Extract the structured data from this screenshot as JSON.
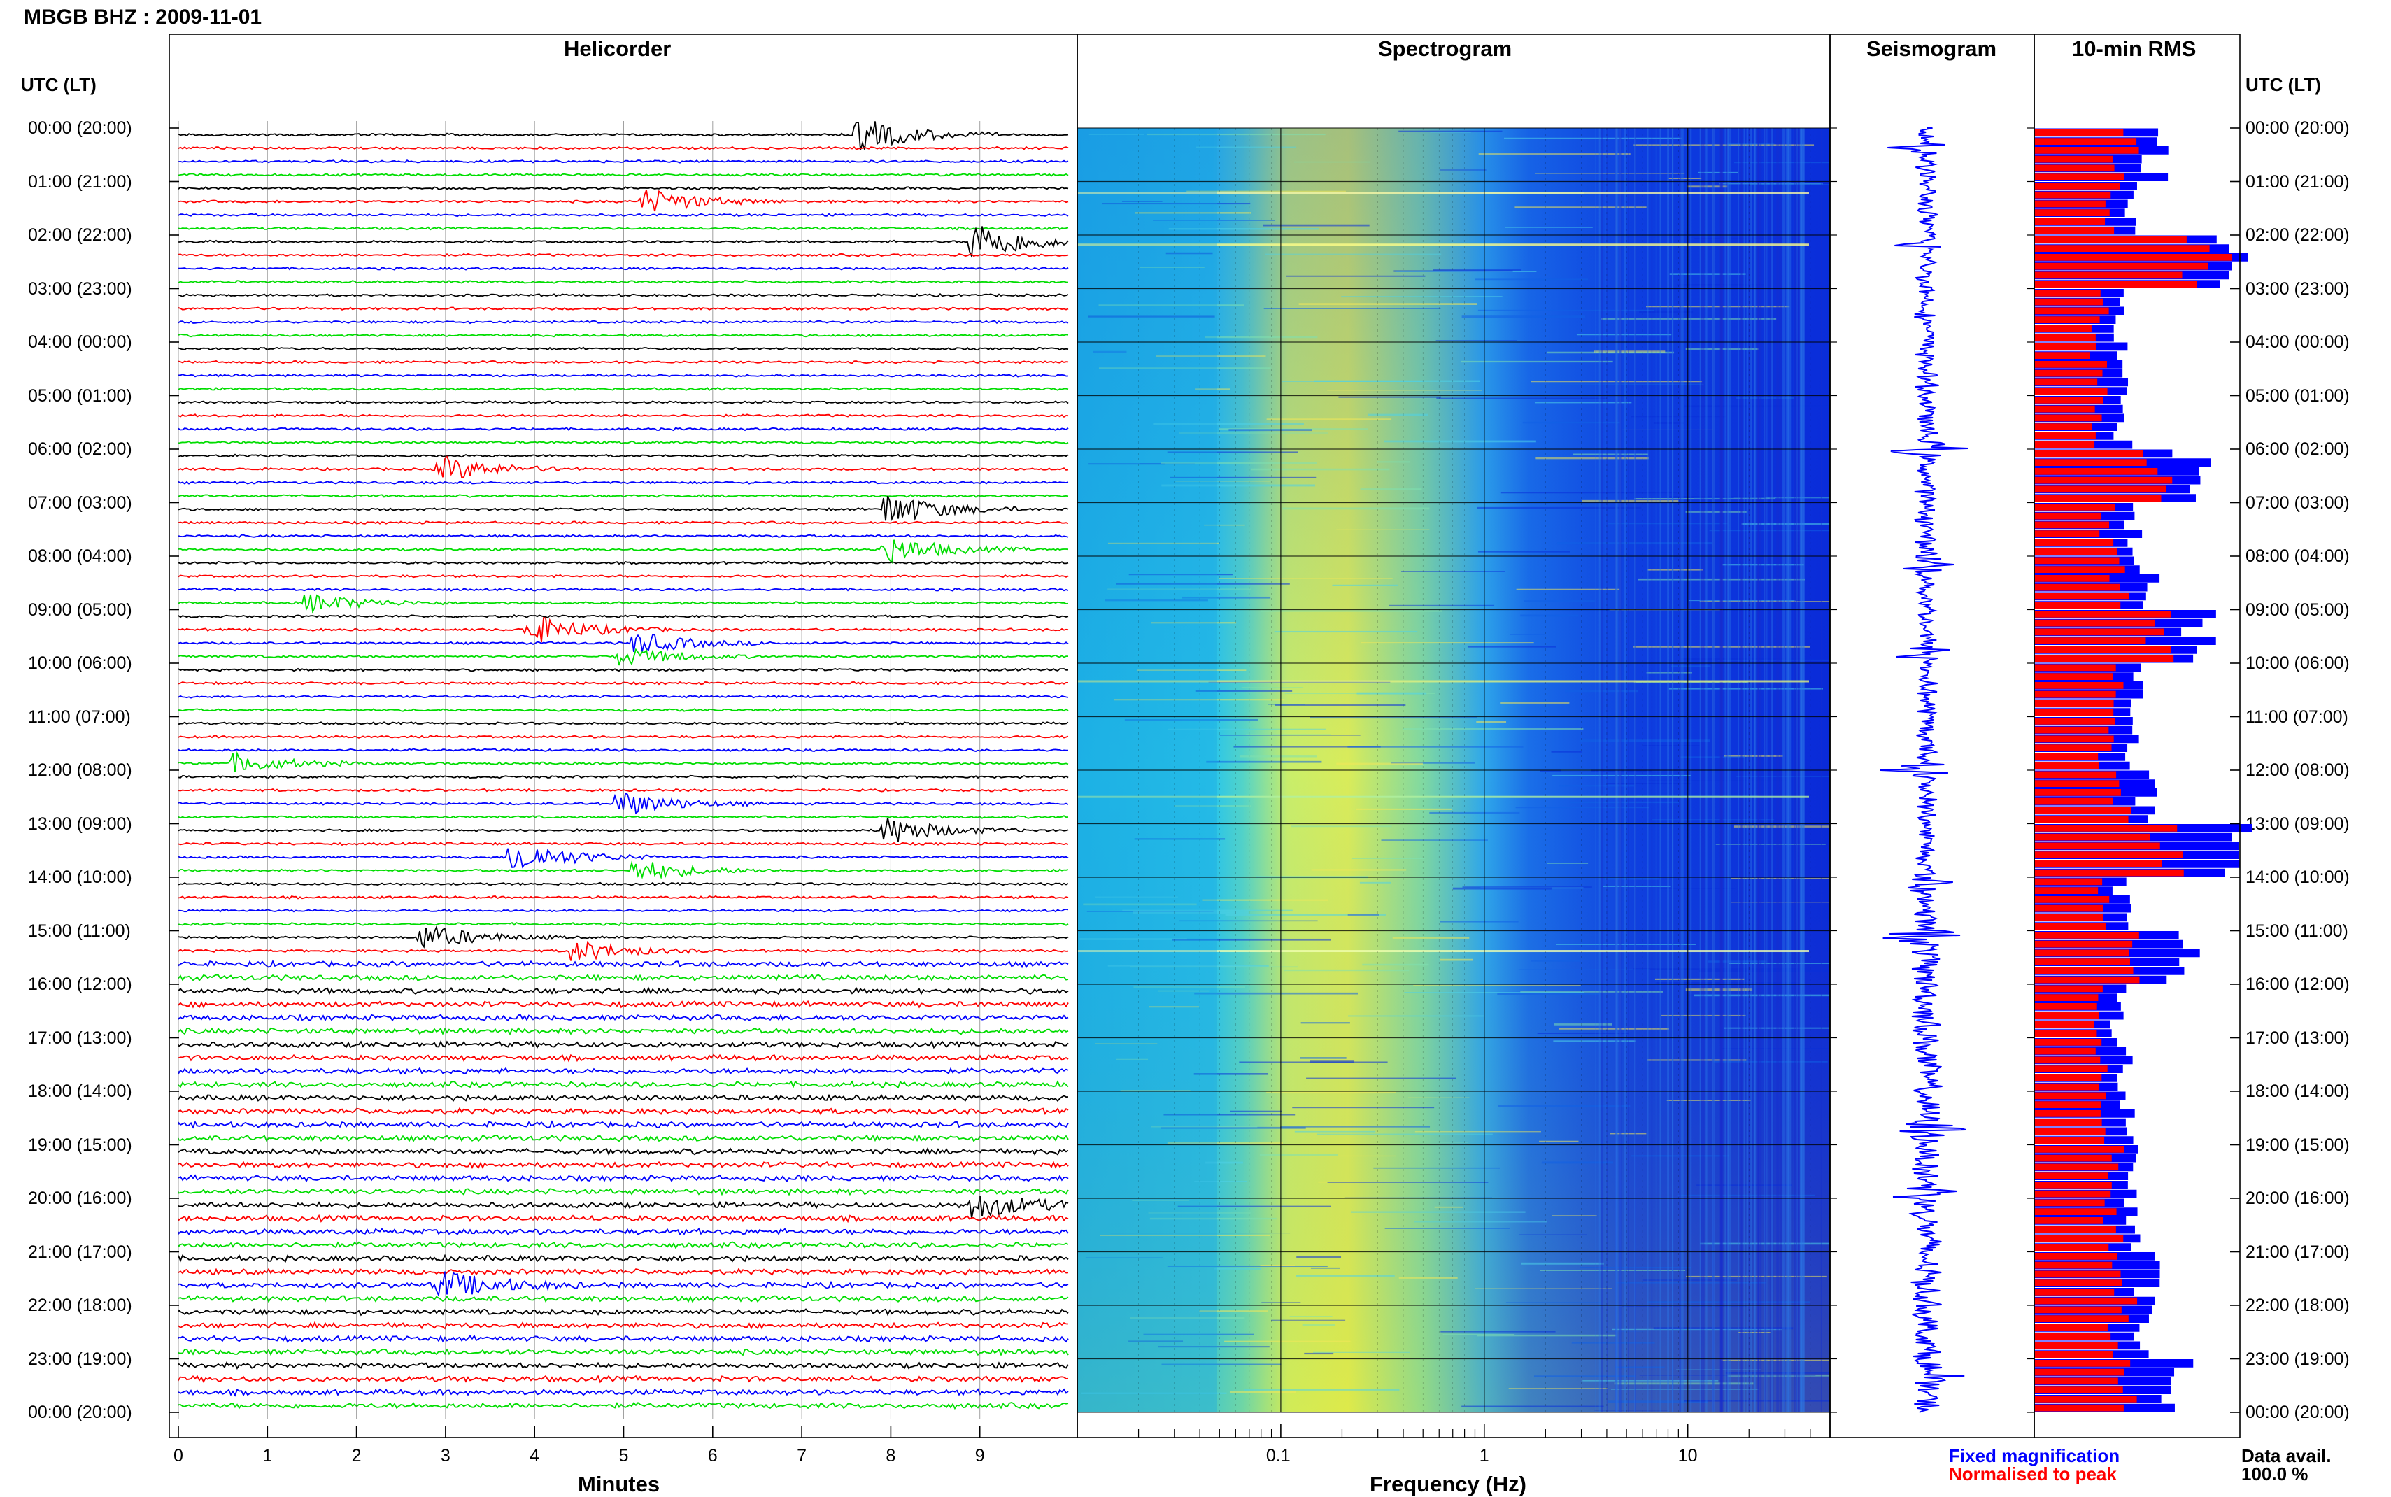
{
  "header": {
    "title": "MBGB BHZ : 2009-11-01",
    "utc_label_left": "UTC (LT)",
    "utc_label_right": "UTC (LT)"
  },
  "panels": {
    "helicorder": "Helicorder",
    "spectrogram": "Spectrogram",
    "seismogram": "Seismogram",
    "rms": "10-min RMS"
  },
  "time_labels": [
    "00:00 (20:00)",
    "01:00 (21:00)",
    "02:00 (22:00)",
    "03:00 (23:00)",
    "04:00 (00:00)",
    "05:00 (01:00)",
    "06:00 (02:00)",
    "07:00 (03:00)",
    "08:00 (04:00)",
    "09:00 (05:00)",
    "10:00 (06:00)",
    "11:00 (07:00)",
    "12:00 (08:00)",
    "13:00 (09:00)",
    "14:00 (10:00)",
    "15:00 (11:00)",
    "16:00 (12:00)",
    "17:00 (13:00)",
    "18:00 (14:00)",
    "19:00 (15:00)",
    "20:00 (16:00)",
    "21:00 (17:00)",
    "22:00 (18:00)",
    "23:00 (19:00)",
    "00:00 (20:00)"
  ],
  "helicorder": {
    "xlabel": "Minutes",
    "ticks": [
      "0",
      "1",
      "2",
      "3",
      "4",
      "5",
      "6",
      "7",
      "8",
      "9"
    ],
    "colors": [
      "#000000",
      "#ff0000",
      "#0000ff",
      "#00dd00"
    ]
  },
  "spectrogram": {
    "xlabel": "Frequency (Hz)",
    "ticks": [
      "0.1",
      "1",
      "10"
    ]
  },
  "legend": {
    "fixed": "Fixed magnification",
    "fixed_color": "#0000ff",
    "normalised": "Normalised to peak",
    "normalised_color": "#ff0000",
    "data_avail_label": "Data avail.",
    "data_avail_value": "100.0 %"
  },
  "chart_data": {
    "type": "bar",
    "title": "10-min RMS",
    "categories": [
      "00:00 (20:00)",
      "01:00 (21:00)",
      "02:00 (22:00)",
      "03:00 (23:00)",
      "04:00 (00:00)",
      "05:00 (01:00)",
      "06:00 (02:00)",
      "07:00 (03:00)",
      "08:00 (04:00)",
      "09:00 (05:00)",
      "10:00 (06:00)",
      "11:00 (07:00)",
      "12:00 (08:00)",
      "13:00 (09:00)",
      "14:00 (10:00)",
      "15:00 (11:00)",
      "16:00 (12:00)",
      "17:00 (13:00)",
      "18:00 (14:00)",
      "19:00 (15:00)",
      "20:00 (16:00)",
      "21:00 (17:00)",
      "22:00 (18:00)",
      "23:00 (19:00)"
    ],
    "series": [
      {
        "name": "Fixed magnification",
        "values": [
          0.45,
          0.4,
          0.85,
          0.33,
          0.32,
          0.33,
          0.6,
          0.36,
          0.42,
          0.62,
          0.4,
          0.36,
          0.44,
          0.65,
          0.32,
          0.52,
          0.33,
          0.34,
          0.36,
          0.4,
          0.38,
          0.44,
          0.42,
          0.45
        ]
      },
      {
        "name": "Normalised to peak",
        "values": [
          0.52,
          0.4,
          0.85,
          0.36,
          0.34,
          0.36,
          0.7,
          0.4,
          0.48,
          0.75,
          0.44,
          0.4,
          0.5,
          1.0,
          0.36,
          0.65,
          0.34,
          0.36,
          0.38,
          0.42,
          0.4,
          0.48,
          0.46,
          0.62
        ]
      }
    ]
  }
}
